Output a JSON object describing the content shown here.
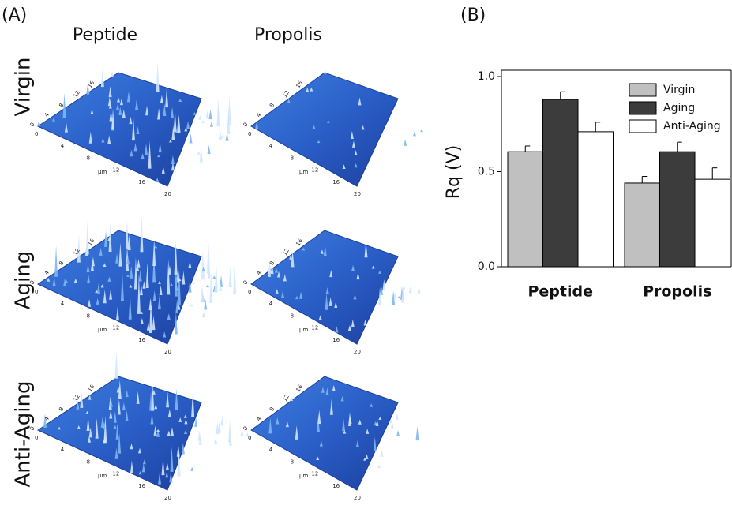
{
  "panel_a": {
    "label": "(A)",
    "columns": [
      "Peptide",
      "Propolis"
    ],
    "rows": [
      "Virgin",
      "Aging",
      "Anti-Aging"
    ],
    "axis_ticks": [
      0,
      4,
      8,
      12,
      16,
      20
    ],
    "axis_unit": "μm"
  },
  "chart_data": {
    "type": "bar",
    "panel_label": "(B)",
    "y_label": "Rq (V)",
    "categories": [
      "Peptide",
      "Propolis"
    ],
    "ylim": [
      0,
      1.0
    ],
    "yticks": [
      {
        "value": 0,
        "label": "0.0"
      },
      {
        "value": 0.5,
        "label": "0.5"
      },
      {
        "value": 1.0,
        "label": "1.0"
      }
    ],
    "series": [
      {
        "name": "Virgin",
        "color": "#c0c0c0",
        "values": [
          0.605,
          0.44
        ],
        "errors": [
          0.03,
          0.035
        ]
      },
      {
        "name": "Aging",
        "color": "#3c3c3c",
        "values": [
          0.88,
          0.605
        ],
        "errors": [
          0.04,
          0.05
        ]
      },
      {
        "name": "Anti-Aging",
        "color": "#ffffff",
        "values": [
          0.71,
          0.46
        ],
        "errors": [
          0.05,
          0.06
        ]
      }
    ],
    "legend": "upper right"
  }
}
